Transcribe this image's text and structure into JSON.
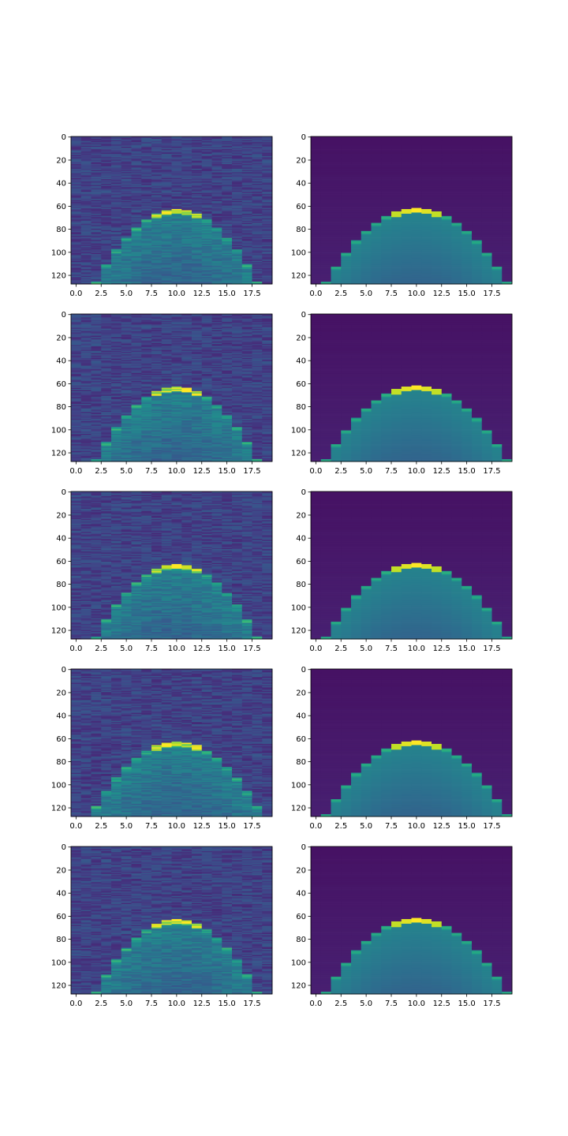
{
  "chart_data": [
    {
      "type": "heatmap",
      "image": "noisy",
      "title": "",
      "xlabel": "",
      "ylabel": "",
      "xlim": [
        -0.5,
        19.5
      ],
      "ylim": [
        127.5,
        -0.5
      ],
      "xticks": [
        "0.0",
        "2.5",
        "5.0",
        "7.5",
        "10.0",
        "12.5",
        "15.0",
        "17.5"
      ],
      "yticks": [
        "0",
        "20",
        "40",
        "60",
        "80",
        "100",
        "120"
      ],
      "n_rows": 128,
      "n_cols": 20,
      "colormap": "viridis",
      "peak": {
        "col": 10.5,
        "row": 64
      },
      "edge": {
        "col": 2.5,
        "row": 127
      },
      "seed": 11
    },
    {
      "type": "heatmap",
      "image": "smooth",
      "title": "",
      "xlabel": "",
      "ylabel": "",
      "xlim": [
        -0.5,
        19.5
      ],
      "ylim": [
        127.5,
        -0.5
      ],
      "xticks": [
        "0.0",
        "2.5",
        "5.0",
        "7.5",
        "10.0",
        "12.5",
        "15.0",
        "17.5"
      ],
      "yticks": [
        "0",
        "20",
        "40",
        "60",
        "80",
        "100",
        "120"
      ],
      "n_rows": 128,
      "n_cols": 20,
      "colormap": "viridis",
      "peak": {
        "col": 10.5,
        "row": 63
      },
      "edge": {
        "col": 1.5,
        "row": 127
      },
      "seed": 12
    },
    {
      "type": "heatmap",
      "image": "noisy",
      "title": "",
      "xlabel": "",
      "ylabel": "",
      "xlim": [
        -0.5,
        19.5
      ],
      "ylim": [
        127.5,
        -0.5
      ],
      "xticks": [
        "0.0",
        "2.5",
        "5.0",
        "7.5",
        "10.0",
        "12.5",
        "15.0",
        "17.5"
      ],
      "yticks": [
        "0",
        "20",
        "40",
        "60",
        "80",
        "100",
        "120"
      ],
      "n_rows": 128,
      "n_cols": 20,
      "colormap": "viridis",
      "peak": {
        "col": 10.5,
        "row": 64
      },
      "edge": {
        "col": 2.5,
        "row": 127
      },
      "seed": 21
    },
    {
      "type": "heatmap",
      "image": "smooth",
      "title": "",
      "xlabel": "",
      "ylabel": "",
      "xlim": [
        -0.5,
        19.5
      ],
      "ylim": [
        127.5,
        -0.5
      ],
      "xticks": [
        "0.0",
        "2.5",
        "5.0",
        "7.5",
        "10.0",
        "12.5",
        "15.0",
        "17.5"
      ],
      "yticks": [
        "0",
        "20",
        "40",
        "60",
        "80",
        "100",
        "120"
      ],
      "n_rows": 128,
      "n_cols": 20,
      "colormap": "viridis",
      "peak": {
        "col": 10.5,
        "row": 63
      },
      "edge": {
        "col": 1.5,
        "row": 127
      },
      "seed": 22
    },
    {
      "type": "heatmap",
      "image": "noisy",
      "title": "",
      "xlabel": "",
      "ylabel": "",
      "xlim": [
        -0.5,
        19.5
      ],
      "ylim": [
        127.5,
        -0.5
      ],
      "xticks": [
        "0.0",
        "2.5",
        "5.0",
        "7.5",
        "10.0",
        "12.5",
        "15.0",
        "17.5"
      ],
      "yticks": [
        "0",
        "20",
        "40",
        "60",
        "80",
        "100",
        "120"
      ],
      "n_rows": 128,
      "n_cols": 20,
      "colormap": "viridis",
      "peak": {
        "col": 10.5,
        "row": 64
      },
      "edge": {
        "col": 2.5,
        "row": 127
      },
      "seed": 31
    },
    {
      "type": "heatmap",
      "image": "smooth",
      "title": "",
      "xlabel": "",
      "ylabel": "",
      "xlim": [
        -0.5,
        19.5
      ],
      "ylim": [
        127.5,
        -0.5
      ],
      "xticks": [
        "0.0",
        "2.5",
        "5.0",
        "7.5",
        "10.0",
        "12.5",
        "15.0",
        "17.5"
      ],
      "yticks": [
        "0",
        "20",
        "40",
        "60",
        "80",
        "100",
        "120"
      ],
      "n_rows": 128,
      "n_cols": 20,
      "colormap": "viridis",
      "peak": {
        "col": 10.5,
        "row": 63
      },
      "edge": {
        "col": 1.5,
        "row": 127
      },
      "seed": 32
    },
    {
      "type": "heatmap",
      "image": "noisy",
      "title": "",
      "xlabel": "",
      "ylabel": "",
      "xlim": [
        -0.5,
        19.5
      ],
      "ylim": [
        127.5,
        -0.5
      ],
      "xticks": [
        "0.0",
        "2.5",
        "5.0",
        "7.5",
        "10.0",
        "12.5",
        "15.0",
        "17.5"
      ],
      "yticks": [
        "0",
        "20",
        "40",
        "60",
        "80",
        "100",
        "120"
      ],
      "n_rows": 128,
      "n_cols": 20,
      "colormap": "viridis",
      "peak": {
        "col": 10.5,
        "row": 64
      },
      "edge": {
        "col": 2.0,
        "row": 127
      },
      "seed": 41
    },
    {
      "type": "heatmap",
      "image": "smooth",
      "title": "",
      "xlabel": "",
      "ylabel": "",
      "xlim": [
        -0.5,
        19.5
      ],
      "ylim": [
        127.5,
        -0.5
      ],
      "xticks": [
        "0.0",
        "2.5",
        "5.0",
        "7.5",
        "10.0",
        "12.5",
        "15.0",
        "17.5"
      ],
      "yticks": [
        "0",
        "20",
        "40",
        "60",
        "80",
        "100",
        "120"
      ],
      "n_rows": 128,
      "n_cols": 20,
      "colormap": "viridis",
      "peak": {
        "col": 10.5,
        "row": 63
      },
      "edge": {
        "col": 1.5,
        "row": 127
      },
      "seed": 42
    },
    {
      "type": "heatmap",
      "image": "noisy",
      "title": "",
      "xlabel": "",
      "ylabel": "",
      "xlim": [
        -0.5,
        19.5
      ],
      "ylim": [
        127.5,
        -0.5
      ],
      "xticks": [
        "0.0",
        "2.5",
        "5.0",
        "7.5",
        "10.0",
        "12.5",
        "15.0",
        "17.5"
      ],
      "yticks": [
        "0",
        "20",
        "40",
        "60",
        "80",
        "100",
        "120"
      ],
      "n_rows": 128,
      "n_cols": 20,
      "colormap": "viridis",
      "peak": {
        "col": 10.5,
        "row": 64
      },
      "edge": {
        "col": 2.5,
        "row": 127
      },
      "seed": 51
    },
    {
      "type": "heatmap",
      "image": "smooth",
      "title": "",
      "xlabel": "",
      "ylabel": "",
      "xlim": [
        -0.5,
        19.5
      ],
      "ylim": [
        127.5,
        -0.5
      ],
      "xticks": [
        "0.0",
        "2.5",
        "5.0",
        "7.5",
        "10.0",
        "12.5",
        "15.0",
        "17.5"
      ],
      "yticks": [
        "0",
        "20",
        "40",
        "60",
        "80",
        "100",
        "120"
      ],
      "n_rows": 128,
      "n_cols": 20,
      "colormap": "viridis",
      "peak": {
        "col": 10.5,
        "row": 63
      },
      "edge": {
        "col": 1.5,
        "row": 127
      },
      "seed": 52
    }
  ]
}
